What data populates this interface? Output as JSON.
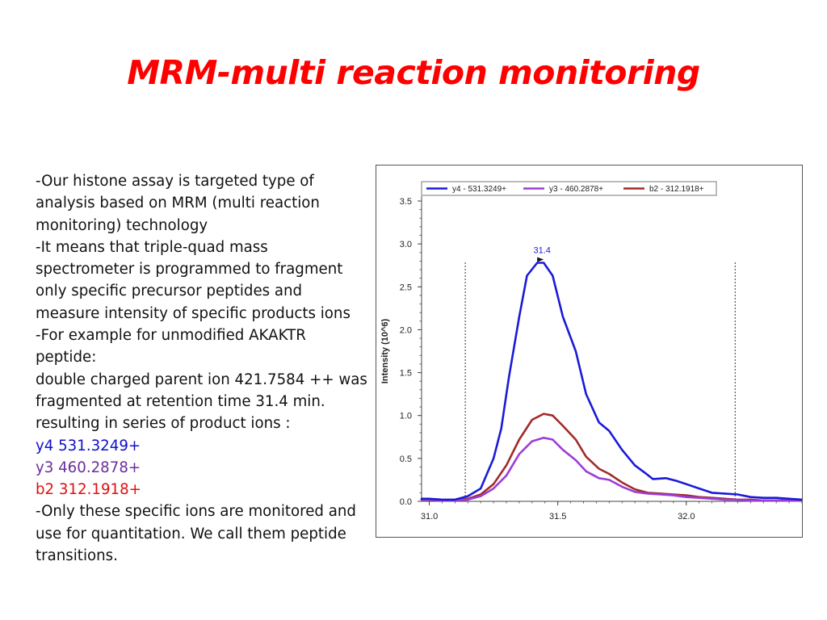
{
  "slide": {
    "title": "MRM-multi reaction monitoring",
    "lines": [
      {
        "text": "-Our histone assay is targeted type of",
        "color": "#111111"
      },
      {
        "text": "analysis based on MRM (multi reaction",
        "color": "#111111"
      },
      {
        "text": "monitoring) technology",
        "color": "#111111"
      },
      {
        "text": "-It means that triple-quad mass",
        "color": "#111111"
      },
      {
        "text": "spectrometer is programmed to fragment",
        "color": "#111111"
      },
      {
        "text": "only specific precursor peptides and",
        "color": "#111111"
      },
      {
        "text": "measure intensity of specific products ions",
        "color": "#111111"
      },
      {
        "text": "-For example for unmodified AKAKTR",
        "color": "#111111"
      },
      {
        "text": "peptide:",
        "color": "#111111"
      },
      {
        "text": "double charged  parent ion 421.7584 ++ was",
        "color": "#111111"
      },
      {
        "text": "fragmented at retention time 31.4 min.",
        "color": "#111111"
      },
      {
        "text": "resulting in series of product ions :",
        "color": "#111111"
      },
      {
        "text": "y4 531.3249+",
        "color": "#1010c8"
      },
      {
        "text": "y3 460.2878+",
        "color": "#6b2f9a"
      },
      {
        "text": "b2 312.1918+",
        "color": "#e01010"
      },
      {
        "text": "-Only these specific ions are monitored and",
        "color": "#111111"
      },
      {
        "text": "use for quantitation. We call them peptide",
        "color": "#111111"
      },
      {
        "text": "transitions.",
        "color": "#111111"
      }
    ]
  },
  "chart_data": {
    "type": "line",
    "ylabel": "Intensity (10^6)",
    "xlabel": "",
    "xlim": [
      30.97,
      32.45
    ],
    "ylim": [
      0,
      3.5
    ],
    "xticks": [
      "31.0",
      "31.5",
      "32.0"
    ],
    "yticks": [
      "0.0",
      "0.5",
      "1.0",
      "1.5",
      "2.0",
      "2.5",
      "3.0",
      "3.5"
    ],
    "legend_position": "top",
    "peak_label": "31.4",
    "peak_rt": 31.445,
    "integration_bounds": [
      31.14,
      32.19
    ],
    "series": [
      {
        "name": "y4 - 531.3249+",
        "color": "#1a1ad8",
        "x": [
          30.97,
          31.0,
          31.05,
          31.1,
          31.15,
          31.2,
          31.25,
          31.28,
          31.31,
          31.35,
          31.38,
          31.42,
          31.445,
          31.48,
          31.52,
          31.57,
          31.61,
          31.66,
          31.7,
          31.75,
          31.8,
          31.84,
          31.87,
          31.92,
          31.96,
          32.0,
          32.05,
          32.1,
          32.15,
          32.2,
          32.25,
          32.3,
          32.35,
          32.4,
          32.45
        ],
        "values": [
          0.03,
          0.03,
          0.02,
          0.02,
          0.06,
          0.15,
          0.5,
          0.85,
          1.45,
          2.15,
          2.63,
          2.78,
          2.78,
          2.63,
          2.15,
          1.75,
          1.25,
          0.92,
          0.82,
          0.6,
          0.42,
          0.33,
          0.26,
          0.27,
          0.24,
          0.2,
          0.15,
          0.1,
          0.09,
          0.08,
          0.05,
          0.04,
          0.04,
          0.03,
          0.02
        ]
      },
      {
        "name": "y3 - 460.2878+",
        "color": "#9b3ed8",
        "x": [
          30.97,
          31.0,
          31.05,
          31.1,
          31.15,
          31.2,
          31.25,
          31.3,
          31.35,
          31.4,
          31.445,
          31.48,
          31.52,
          31.57,
          31.61,
          31.66,
          31.7,
          31.75,
          31.8,
          31.85,
          31.9,
          31.95,
          32.0,
          32.05,
          32.1,
          32.15,
          32.2,
          32.25,
          32.3,
          32.35,
          32.4,
          32.45
        ],
        "values": [
          0.02,
          0.02,
          0.01,
          0.01,
          0.02,
          0.06,
          0.15,
          0.3,
          0.55,
          0.7,
          0.74,
          0.72,
          0.6,
          0.48,
          0.35,
          0.27,
          0.25,
          0.17,
          0.11,
          0.09,
          0.08,
          0.07,
          0.05,
          0.04,
          0.03,
          0.02,
          0.02,
          0.01,
          0.01,
          0.01,
          0.01,
          0.01
        ]
      },
      {
        "name": "b2 - 312.1918+",
        "color": "#a22a2a",
        "x": [
          30.97,
          31.0,
          31.05,
          31.1,
          31.15,
          31.2,
          31.25,
          31.3,
          31.35,
          31.4,
          31.445,
          31.48,
          31.52,
          31.57,
          31.61,
          31.66,
          31.7,
          31.75,
          31.8,
          31.85,
          31.9,
          31.95,
          32.0,
          32.05,
          32.1,
          32.15,
          32.2,
          32.25,
          32.3,
          32.35,
          32.4,
          32.45
        ],
        "values": [
          0.02,
          0.02,
          0.01,
          0.01,
          0.03,
          0.08,
          0.2,
          0.42,
          0.72,
          0.95,
          1.02,
          1.0,
          0.88,
          0.72,
          0.52,
          0.38,
          0.32,
          0.22,
          0.14,
          0.1,
          0.09,
          0.08,
          0.07,
          0.05,
          0.04,
          0.03,
          0.02,
          0.02,
          0.01,
          0.01,
          0.01,
          0.01
        ]
      }
    ]
  }
}
